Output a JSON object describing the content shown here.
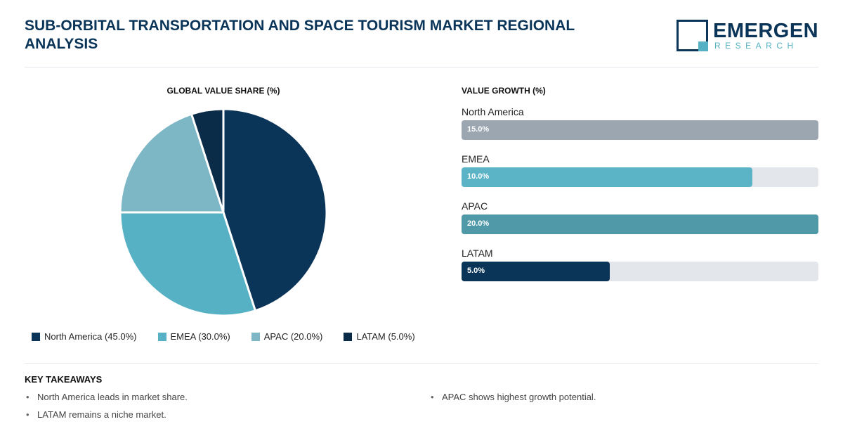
{
  "header": {
    "title": "SUB-ORBITAL TRANSPORTATION AND SPACE TOURISM MARKET REGIONAL ANALYSIS",
    "logo_name": "EMERGEN",
    "logo_sub": "RESEARCH"
  },
  "chart_data": [
    {
      "type": "pie",
      "title": "GLOBAL VALUE SHARE (%)",
      "categories": [
        "North America",
        "EMEA",
        "APAC",
        "LATAM"
      ],
      "values": [
        45.0,
        30.0,
        20.0,
        5.0
      ],
      "colors": [
        "#0b3558",
        "#55b1c3",
        "#7db7c6",
        "#0a2c48"
      ],
      "legend": [
        "North America (45.0%)",
        "EMEA (30.0%)",
        "APAC (20.0%)",
        "LATAM (5.0%)"
      ],
      "legend_placement": "bottom"
    },
    {
      "type": "bar",
      "orientation": "horizontal",
      "title": "VALUE GROWTH (%)",
      "categories": [
        "North America",
        "EMEA",
        "APAC",
        "LATAM"
      ],
      "values": [
        15.0,
        10.0,
        20.0,
        5.0
      ],
      "value_labels": [
        "15.0%",
        "10.0%",
        "20.0%",
        "5.0%"
      ],
      "fill_fractions": [
        1.0,
        0.815,
        1.0,
        0.415
      ],
      "colors": [
        "#9ca6b0",
        "#5bb3c6",
        "#4f99a8",
        "#0b3558"
      ]
    }
  ],
  "takeaways": {
    "title": "KEY TAKEAWAYS",
    "items": [
      "North America leads in market share.",
      "APAC shows highest growth potential.",
      "LATAM remains a niche market."
    ]
  }
}
